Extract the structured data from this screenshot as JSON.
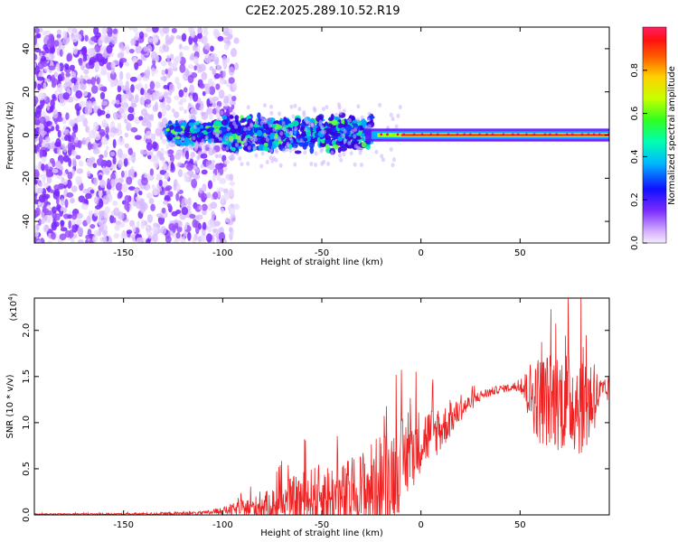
{
  "title": "C2E2.2025.289.10.52.R19",
  "chart_data": [
    {
      "type": "heatmap",
      "name": "spectrogram",
      "xlabel": "Height of straight line (km)",
      "ylabel": "Frequency (Hz)",
      "xlim": [
        -195,
        95
      ],
      "ylim": [
        -50,
        50
      ],
      "xticks": [
        -150,
        -100,
        -50,
        0,
        50
      ],
      "yticks": [
        -40,
        -20,
        0,
        20,
        40
      ],
      "colorbar": {
        "label": "Normalized spectral amplitude",
        "range": [
          0,
          1
        ],
        "ticks": [
          "0.0",
          "0.2",
          "0.4",
          "0.6",
          "0.8"
        ],
        "colors": [
          "#f0e6ff",
          "#c8a0ff",
          "#6a00ff",
          "#0000ff",
          "#00c8ff",
          "#00ff80",
          "#aaff00",
          "#ffff00",
          "#ff8000",
          "#ff0000",
          "#ff0066"
        ]
      },
      "regions": [
        {
          "label": "noise",
          "x": [
            -195,
            -105
          ],
          "freq_span": [
            -50,
            50
          ],
          "amplitude": 0.1
        },
        {
          "label": "transition",
          "x": [
            -128,
            -25
          ],
          "freq_span": [
            -8,
            10
          ],
          "amplitude": 0.4
        },
        {
          "label": "signal",
          "x": [
            -25,
            95
          ],
          "freq_span": [
            -1,
            1
          ],
          "amplitude": 0.95
        }
      ]
    },
    {
      "type": "line",
      "name": "snr",
      "xlabel": "Height of straight line (km)",
      "ylabel": "SNR (10 * v/v)",
      "y_multiplier": "(x10",
      "y_multiplier_exp": "4",
      "xlim": [
        -195,
        95
      ],
      "ylim": [
        0,
        2.35
      ],
      "xticks": [
        -150,
        -100,
        -50,
        0,
        50
      ],
      "yticks": [
        "0.0",
        "0.5",
        "1.0",
        "1.5",
        "2.0"
      ],
      "line_color": "#ee2222",
      "envelope": {
        "x": [
          -195,
          -150,
          -110,
          -100,
          -80,
          -60,
          -50,
          -40,
          -30,
          -20,
          -10,
          0,
          10,
          20,
          30,
          40,
          50,
          55,
          60,
          70,
          80,
          85,
          90,
          95
        ],
        "base": [
          0.01,
          0.01,
          0.02,
          0.05,
          0.1,
          0.2,
          0.25,
          0.2,
          0.3,
          0.4,
          0.6,
          0.85,
          0.95,
          1.15,
          1.3,
          1.37,
          1.4,
          1.35,
          1.3,
          1.3,
          1.3,
          1.3,
          1.33,
          1.35
        ],
        "noise": [
          0.005,
          0.01,
          0.02,
          0.04,
          0.15,
          0.3,
          0.35,
          0.4,
          0.45,
          0.55,
          0.5,
          0.35,
          0.25,
          0.12,
          0.06,
          0.04,
          0.05,
          0.35,
          0.5,
          0.55,
          0.6,
          0.55,
          0.2,
          0.1
        ]
      }
    }
  ]
}
